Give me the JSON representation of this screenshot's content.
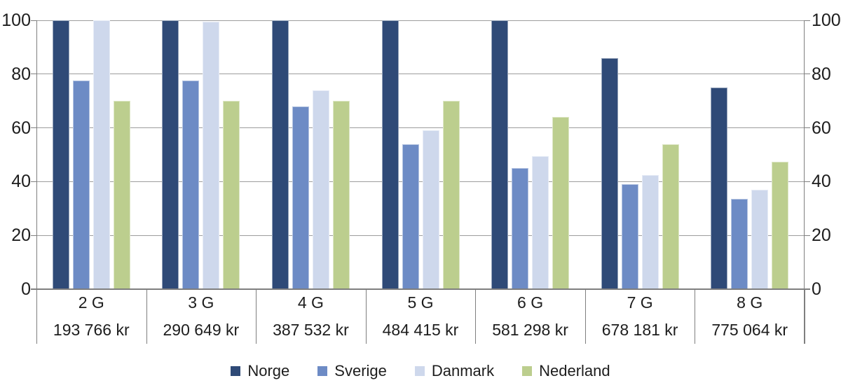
{
  "chart_data": {
    "type": "bar",
    "title": "",
    "xlabel": "",
    "ylabel": "",
    "categories": [
      {
        "label": "2 G",
        "sublabel": "193 766 kr"
      },
      {
        "label": "3 G",
        "sublabel": "290 649 kr"
      },
      {
        "label": "4 G",
        "sublabel": "387 532 kr"
      },
      {
        "label": "5 G",
        "sublabel": "484 415 kr"
      },
      {
        "label": "6 G",
        "sublabel": "581 298 kr"
      },
      {
        "label": "7 G",
        "sublabel": "678 181 kr"
      },
      {
        "label": "8 G",
        "sublabel": "775 064 kr"
      }
    ],
    "series": [
      {
        "name": "Norge",
        "color": "#2F4A77",
        "values": [
          100,
          100,
          100,
          100,
          100,
          86,
          75
        ]
      },
      {
        "name": "Sverige",
        "color": "#6D8BC5",
        "values": [
          77.5,
          77.5,
          68,
          54,
          45,
          39,
          33.5
        ]
      },
      {
        "name": "Danmark",
        "color": "#CED8EC",
        "values": [
          100,
          99.5,
          74,
          59,
          49.5,
          42.5,
          37
        ]
      },
      {
        "name": "Nederland",
        "color": "#BCCE8E",
        "values": [
          70,
          70,
          70,
          70,
          64,
          54,
          47.5
        ]
      }
    ],
    "ylim": [
      0,
      100
    ],
    "yticks": [
      0,
      20,
      40,
      60,
      80,
      100
    ],
    "grid": true,
    "dual_y_axis": true,
    "legend_position": "bottom"
  },
  "colors": {
    "gridline": "#9C9C9C",
    "axis": "#7F7F7F",
    "text": "#1D1D1D",
    "background": "#FFFFFF"
  }
}
